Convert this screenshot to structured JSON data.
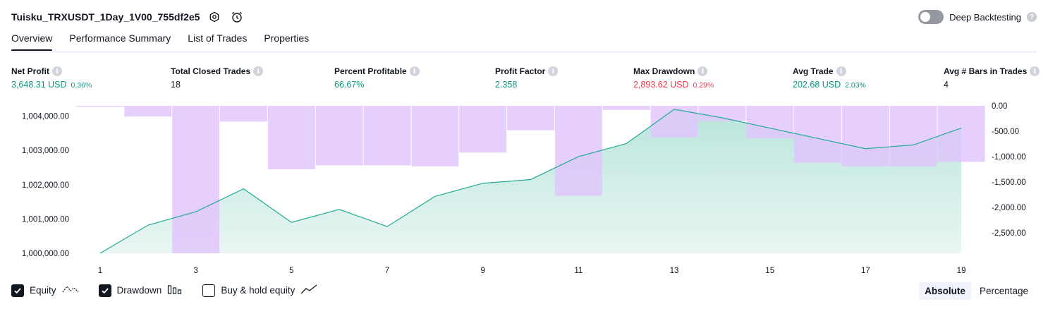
{
  "header": {
    "strategy_name": "Tuisku_TRXUSDT_1Day_1V00_755df2e5",
    "deep_backtesting_label": "Deep Backtesting",
    "deep_backtesting_enabled": false
  },
  "tabs": [
    {
      "label": "Overview",
      "active": true
    },
    {
      "label": "Performance Summary",
      "active": false
    },
    {
      "label": "List of Trades",
      "active": false
    },
    {
      "label": "Properties",
      "active": false
    }
  ],
  "metrics": [
    {
      "label": "Net Profit",
      "value": "3,648.31 USD",
      "pct": "0.36%",
      "tone": "pos"
    },
    {
      "label": "Total Closed Trades",
      "value": "18",
      "pct": "",
      "tone": "plain"
    },
    {
      "label": "Percent Profitable",
      "value": "66.67%",
      "pct": "",
      "tone": "pos"
    },
    {
      "label": "Profit Factor",
      "value": "2.358",
      "pct": "",
      "tone": "pos"
    },
    {
      "label": "Max Drawdown",
      "value": "2,893.62 USD",
      "pct": "0.29%",
      "tone": "neg"
    },
    {
      "label": "Avg Trade",
      "value": "202.68 USD",
      "pct": "2.03%",
      "tone": "pos"
    },
    {
      "label": "Avg # Bars in Trades",
      "value": "4",
      "pct": "",
      "tone": "plain"
    }
  ],
  "legend": {
    "equity_label": "Equity",
    "equity_checked": true,
    "drawdown_label": "Drawdown",
    "drawdown_checked": true,
    "buyhold_label": "Buy & hold equity",
    "buyhold_checked": false
  },
  "modes": {
    "absolute_label": "Absolute",
    "percentage_label": "Percentage",
    "active": "absolute"
  },
  "colors": {
    "equity_line": "#22ab94",
    "equity_fill_top": "#b9e5dc",
    "equity_fill_bottom": "#eaf6f3",
    "drawdown_bar": "#e1c4fc",
    "overlap": "#b0b8e6"
  },
  "chart_data": {
    "type": "area",
    "x": [
      1,
      2,
      3,
      4,
      5,
      6,
      7,
      8,
      9,
      10,
      11,
      12,
      13,
      14,
      15,
      16,
      17,
      18,
      19
    ],
    "x_ticks": [
      "1",
      "3",
      "5",
      "7",
      "9",
      "11",
      "13",
      "15",
      "17",
      "19"
    ],
    "equity_left_axis": {
      "ticks": [
        "1,000,000.00",
        "1,001,000.00",
        "1,002,000.00",
        "1,003,000.00",
        "1,004,000.00"
      ],
      "ylim": [
        1000000,
        1004300
      ]
    },
    "drawdown_right_axis": {
      "ticks": [
        "0.00",
        "-500.00",
        "-1,000.00",
        "-1,500.00",
        "-2,000.00",
        "-2,500.00"
      ],
      "ylim": [
        -2900,
        0
      ]
    },
    "series": [
      {
        "name": "Equity",
        "kind": "line-area",
        "values": [
          1000000,
          1000820,
          1001210,
          1001880,
          1000900,
          1001280,
          1000780,
          1001660,
          1002040,
          1002150,
          1002820,
          1003200,
          1004200,
          1003950,
          1003650,
          1003350,
          1003050,
          1003160,
          1003650
        ]
      },
      {
        "name": "Drawdown",
        "kind": "bar",
        "values": [
          -20,
          -210,
          -2900,
          -310,
          -1250,
          -1170,
          -1170,
          -1190,
          -920,
          -480,
          -1770,
          -80,
          -620,
          -300,
          -640,
          -1120,
          -1190,
          -1190,
          -1100
        ]
      }
    ]
  }
}
